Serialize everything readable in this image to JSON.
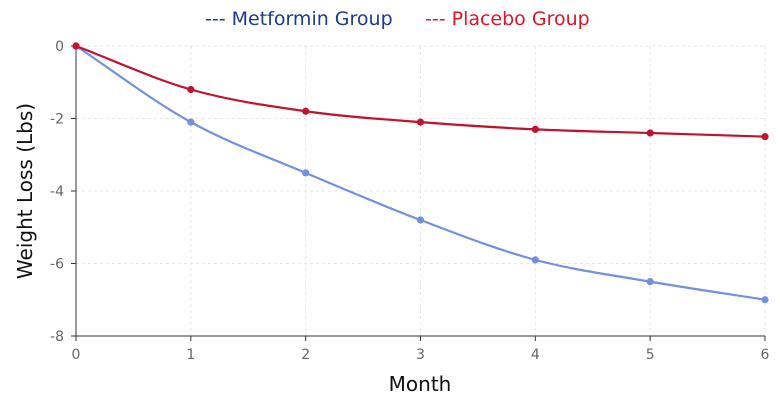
{
  "chart_data": {
    "type": "line",
    "title": "",
    "xlabel": "Month",
    "ylabel": "Weight Loss (Lbs)",
    "x": [
      0,
      1,
      2,
      3,
      4,
      5,
      6
    ],
    "xlim": [
      0,
      6
    ],
    "ylim": [
      -8,
      0
    ],
    "x_ticks": [
      "0",
      "1",
      "2",
      "3",
      "4",
      "5",
      "6"
    ],
    "y_ticks": [
      "0",
      "-2",
      "-4",
      "-6",
      "-8"
    ],
    "grid": true,
    "legend_position": "top-center",
    "legend": [
      {
        "label": "--- Metformin Group",
        "color": "#1f3a8a"
      },
      {
        "label": "--- Placebo Group",
        "color": "#e0142b"
      }
    ],
    "series": [
      {
        "name": "Metformin Group",
        "color": "#7390dc",
        "values": [
          0,
          -2.1,
          -3.5,
          -4.8,
          -5.9,
          -6.5,
          -7.0
        ]
      },
      {
        "name": "Placebo Group",
        "color": "#c1122f",
        "values": [
          0,
          -1.2,
          -1.8,
          -2.1,
          -2.3,
          -2.4,
          -2.5
        ]
      }
    ]
  }
}
